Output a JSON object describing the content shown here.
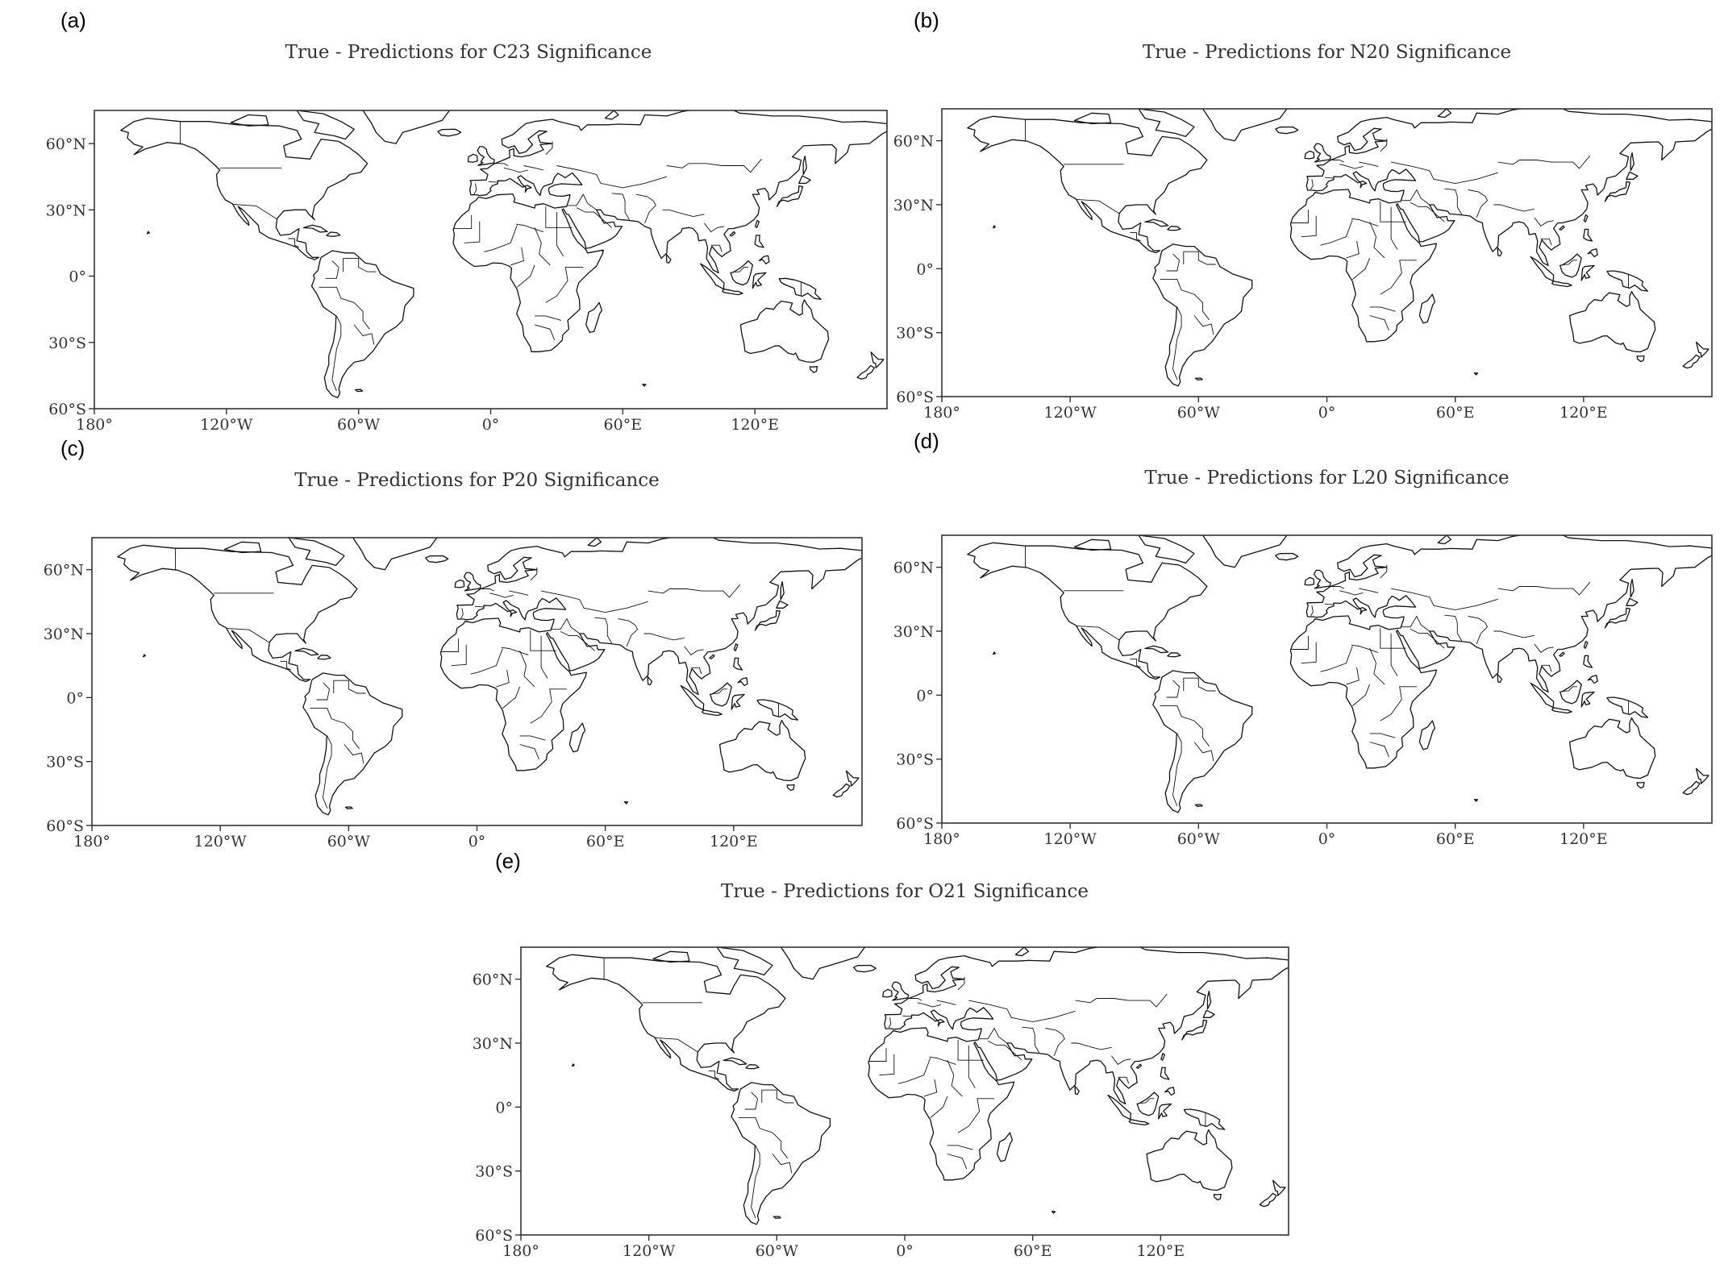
{
  "panels": [
    {
      "id": "a",
      "letter": "(a)",
      "title": "True - Predictions for C23 Significance"
    },
    {
      "id": "b",
      "letter": "(b)",
      "title": "True - Predictions for N20 Significance"
    },
    {
      "id": "c",
      "letter": "(c)",
      "title": "True - Predictions for P20 Significance"
    },
    {
      "id": "d",
      "letter": "(d)",
      "title": "True - Predictions for L20 Significance"
    },
    {
      "id": "e",
      "letter": "(e)",
      "title": "True - Predictions for O21 Significance"
    }
  ],
  "map_extent": {
    "lon": [
      -180,
      180
    ],
    "lat": [
      -60,
      75
    ]
  },
  "lon_ticks": [
    {
      "value": -180,
      "label": "180°"
    },
    {
      "value": -120,
      "label": "120°W"
    },
    {
      "value": -60,
      "label": "60°W"
    },
    {
      "value": 0,
      "label": "0°"
    },
    {
      "value": 60,
      "label": "60°E"
    },
    {
      "value": 120,
      "label": "120°E"
    }
  ],
  "lat_ticks": [
    {
      "value": 60,
      "label": "60°N"
    },
    {
      "value": 30,
      "label": "30°N"
    },
    {
      "value": 0,
      "label": "0°"
    },
    {
      "value": -30,
      "label": "30°S"
    },
    {
      "value": -60,
      "label": "60°S"
    }
  ],
  "colors": {
    "coastline": "#111111",
    "frame": "#333333",
    "background": "#ffffff"
  }
}
